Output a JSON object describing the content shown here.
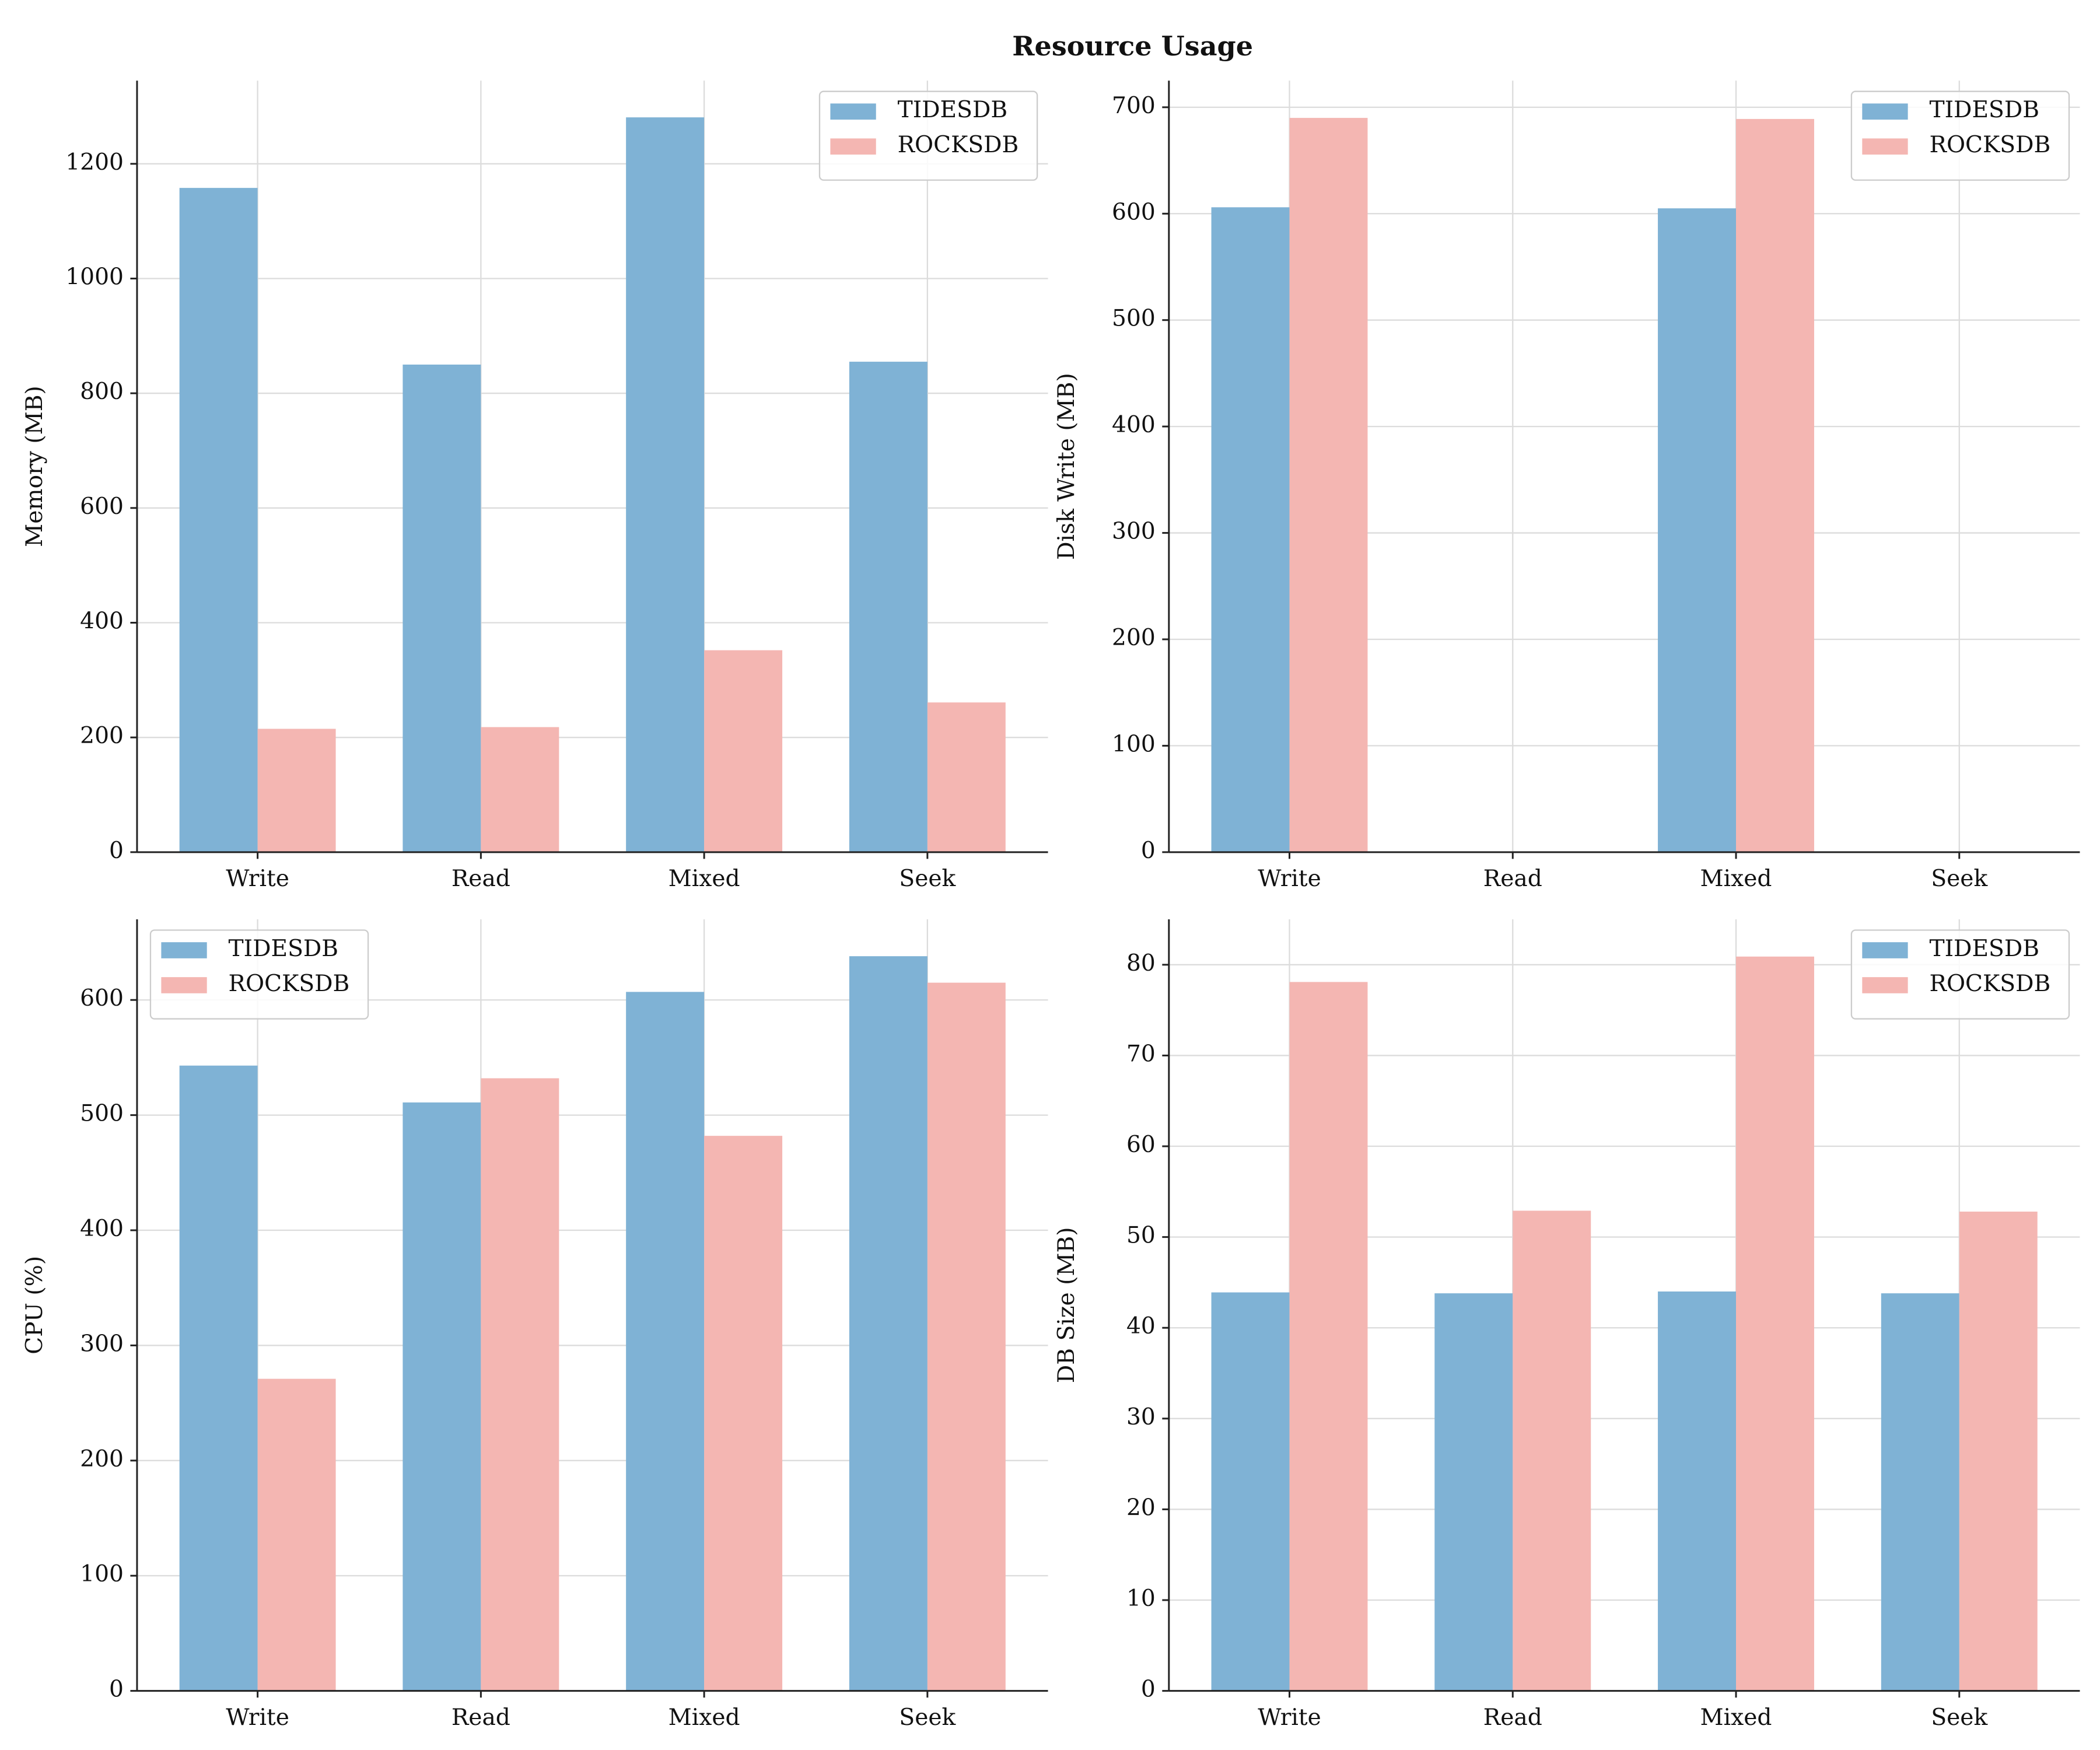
{
  "title": "Resource Usage",
  "chart_data": [
    {
      "type": "bar",
      "ylabel": "Memory (MB)",
      "categories": [
        "Write",
        "Read",
        "Mixed",
        "Seek"
      ],
      "series": [
        {
          "name": "TIDESDB",
          "color": "#7fb2d5",
          "values": [
            1158,
            850,
            1281,
            855
          ]
        },
        {
          "name": "ROCKSDB",
          "color": "#f4b6b2",
          "values": [
            215,
            218,
            352,
            261
          ]
        }
      ],
      "ylim": [
        0,
        1345
      ],
      "yticks": [
        0,
        200,
        400,
        600,
        800,
        1000,
        1200
      ],
      "grid": true,
      "legend": "upper right"
    },
    {
      "type": "bar",
      "ylabel": "Disk Write (MB)",
      "categories": [
        "Write",
        "Read",
        "Mixed",
        "Seek"
      ],
      "series": [
        {
          "name": "TIDESDB",
          "color": "#7fb2d5",
          "values": [
            606,
            0,
            605,
            0
          ]
        },
        {
          "name": "ROCKSDB",
          "color": "#f4b6b2",
          "values": [
            690,
            0,
            689,
            0
          ]
        }
      ],
      "ylim": [
        0,
        725
      ],
      "yticks": [
        0,
        100,
        200,
        300,
        400,
        500,
        600,
        700
      ],
      "grid": true,
      "legend": "upper right"
    },
    {
      "type": "bar",
      "ylabel": "CPU (%)",
      "categories": [
        "Write",
        "Read",
        "Mixed",
        "Seek"
      ],
      "series": [
        {
          "name": "TIDESDB",
          "color": "#7fb2d5",
          "values": [
            543,
            511,
            607,
            638
          ]
        },
        {
          "name": "ROCKSDB",
          "color": "#f4b6b2",
          "values": [
            271,
            532,
            482,
            615
          ]
        }
      ],
      "ylim": [
        0,
        670
      ],
      "yticks": [
        0,
        100,
        200,
        300,
        400,
        500,
        600
      ],
      "grid": true,
      "legend": "upper left"
    },
    {
      "type": "bar",
      "ylabel": "DB Size (MB)",
      "categories": [
        "Write",
        "Read",
        "Mixed",
        "Seek"
      ],
      "series": [
        {
          "name": "TIDESDB",
          "color": "#7fb2d5",
          "values": [
            43.9,
            43.8,
            44.0,
            43.8
          ]
        },
        {
          "name": "ROCKSDB",
          "color": "#f4b6b2",
          "values": [
            78.1,
            52.9,
            80.9,
            52.8
          ]
        }
      ],
      "ylim": [
        0,
        85
      ],
      "yticks": [
        0,
        10,
        20,
        30,
        40,
        50,
        60,
        70,
        80
      ],
      "grid": true,
      "legend": "upper right"
    }
  ]
}
